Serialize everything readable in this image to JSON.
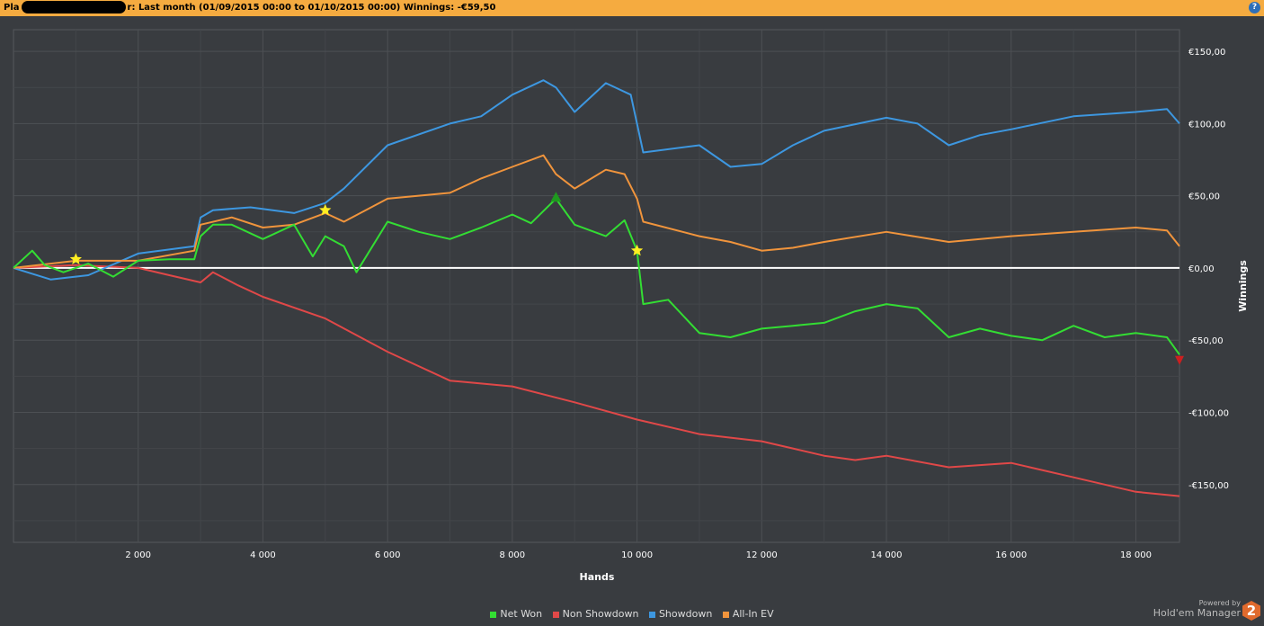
{
  "header": {
    "prefix": "Pla",
    "suffix": "r:",
    "period": "Last month (01/09/2015 00:00 to 01/10/2015 00:00)",
    "winnings_label": "Winnings:",
    "winnings_value": "-€59,50",
    "help_icon": "help-icon",
    "help_label": "?"
  },
  "colors": {
    "net_won": "#33dd33",
    "non_showdown": "#e04848",
    "showdown": "#3d97e0",
    "allin_ev": "#f0943c",
    "zero_line": "#ffffff",
    "background": "#393c40"
  },
  "chart_data": {
    "type": "line",
    "xlabel": "Hands",
    "ylabel": "Winnings",
    "xlim": [
      0,
      18700
    ],
    "ylim": [
      -190,
      165
    ],
    "x_ticks": [
      2000,
      4000,
      6000,
      8000,
      10000,
      12000,
      14000,
      16000,
      18000
    ],
    "x_tick_labels": [
      "2 000",
      "4 000",
      "6 000",
      "8 000",
      "10 000",
      "12 000",
      "14 000",
      "16 000",
      "18 000"
    ],
    "y_ticks": [
      150,
      100,
      50,
      0,
      -50,
      -100,
      -150
    ],
    "y_tick_labels": [
      "€150,00",
      "€100,00",
      "€50,00",
      "€0,00",
      "-€50,00",
      "-€100,00",
      "-€150,00"
    ],
    "grid": true,
    "legend_position": "bottom",
    "series": [
      {
        "name": "Net Won",
        "color": "#33dd33",
        "x": [
          0,
          300,
          500,
          800,
          1200,
          1600,
          2000,
          2500,
          2900,
          3000,
          3200,
          3500,
          4000,
          4500,
          4800,
          5000,
          5300,
          5500,
          6000,
          6500,
          7000,
          7500,
          8000,
          8300,
          8700,
          9000,
          9500,
          9800,
          10000,
          10100,
          10500,
          11000,
          11500,
          12000,
          12500,
          13000,
          13500,
          14000,
          14500,
          15000,
          15500,
          16000,
          16500,
          17000,
          17500,
          18000,
          18500,
          18700
        ],
        "y": [
          0,
          12,
          2,
          -3,
          3,
          -6,
          5,
          6,
          6,
          22,
          30,
          30,
          20,
          30,
          8,
          22,
          15,
          -3,
          32,
          25,
          20,
          28,
          37,
          31,
          48,
          30,
          22,
          33,
          12,
          -25,
          -22,
          -45,
          -48,
          -42,
          -40,
          -38,
          -30,
          -25,
          -28,
          -48,
          -42,
          -47,
          -50,
          -40,
          -48,
          -45,
          -48,
          -60
        ]
      },
      {
        "name": "Non Showdown",
        "color": "#e04848",
        "x": [
          0,
          1000,
          2000,
          2500,
          3000,
          3200,
          3600,
          4000,
          5000,
          6000,
          7000,
          8000,
          9000,
          10000,
          11000,
          12000,
          12500,
          13000,
          13500,
          14000,
          15000,
          16000,
          17000,
          18000,
          18700
        ],
        "y": [
          0,
          2,
          0,
          -5,
          -10,
          -3,
          -12,
          -20,
          -35,
          -58,
          -78,
          -82,
          -93,
          -105,
          -115,
          -120,
          -125,
          -130,
          -133,
          -130,
          -138,
          -135,
          -145,
          -155,
          -158
        ]
      },
      {
        "name": "Showdown",
        "color": "#3d97e0",
        "x": [
          0,
          600,
          1200,
          2000,
          2900,
          3000,
          3200,
          3800,
          4500,
          5000,
          5300,
          6000,
          7000,
          7500,
          8000,
          8500,
          8700,
          9000,
          9500,
          9900,
          10100,
          11000,
          11500,
          12000,
          12500,
          13000,
          14000,
          14500,
          15000,
          15500,
          16000,
          17000,
          18000,
          18500,
          18700
        ],
        "y": [
          0,
          -8,
          -5,
          10,
          15,
          35,
          40,
          42,
          38,
          45,
          55,
          85,
          100,
          105,
          120,
          130,
          125,
          108,
          128,
          120,
          80,
          85,
          70,
          72,
          85,
          95,
          104,
          100,
          85,
          92,
          96,
          105,
          108,
          110,
          100
        ]
      },
      {
        "name": "All-In EV",
        "color": "#f0943c",
        "x": [
          0,
          1000,
          2000,
          2900,
          3000,
          3500,
          4000,
          4500,
          5000,
          5300,
          6000,
          6500,
          7000,
          7500,
          8000,
          8500,
          8700,
          9000,
          9500,
          9800,
          10000,
          10100,
          11000,
          11500,
          12000,
          12500,
          13000,
          14000,
          15000,
          16000,
          17000,
          18000,
          18500,
          18700
        ],
        "y": [
          0,
          5,
          5,
          12,
          30,
          35,
          28,
          30,
          38,
          32,
          48,
          50,
          52,
          62,
          70,
          78,
          65,
          55,
          68,
          65,
          48,
          32,
          22,
          18,
          12,
          14,
          18,
          25,
          18,
          22,
          25,
          28,
          26,
          15
        ]
      }
    ],
    "markers": [
      {
        "type": "star",
        "x": 1000,
        "y": 6,
        "color": "#ffee22"
      },
      {
        "type": "star",
        "x": 5000,
        "y": 40,
        "color": "#ffee22"
      },
      {
        "type": "star",
        "x": 10000,
        "y": 12,
        "color": "#ffee22"
      },
      {
        "type": "triangle-up",
        "x": 8700,
        "y": 49,
        "color": "#1e9a1e"
      },
      {
        "type": "triangle-down",
        "x": 18700,
        "y": -64,
        "color": "#cc2020"
      }
    ]
  },
  "legend": [
    {
      "label": "Net Won",
      "color": "#33dd33"
    },
    {
      "label": "Non Showdown",
      "color": "#e04848"
    },
    {
      "label": "Showdown",
      "color": "#3d97e0"
    },
    {
      "label": "All-In EV",
      "color": "#f0943c"
    }
  ],
  "branding": {
    "powered_by": "Powered by",
    "product": "Hold'em Manager",
    "logo_text": "2"
  }
}
